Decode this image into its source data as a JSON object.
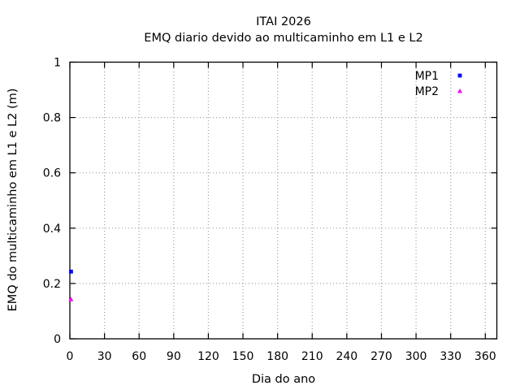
{
  "chart_data": {
    "type": "scatter",
    "title": "ITAI 2026",
    "subtitle": "EMQ diario devido ao multicaminho em L1 e L2",
    "xlabel": "Dia do ano",
    "ylabel": "EMQ do multicaminho em L1 e L2 (m)",
    "xlim": [
      0,
      370
    ],
    "ylim": [
      0,
      1
    ],
    "xticks": [
      0,
      30,
      60,
      90,
      120,
      150,
      180,
      210,
      240,
      270,
      300,
      330,
      360
    ],
    "xtick_labels": [
      "0",
      "30",
      "60",
      "90",
      "120",
      "150",
      "180",
      "210",
      "240",
      "270",
      "300",
      "330",
      "360"
    ],
    "yticks": [
      0,
      0.2,
      0.4,
      0.6,
      0.8,
      1
    ],
    "ytick_labels": [
      "0",
      "0.2",
      "0.4",
      "0.6",
      "0.8",
      "1"
    ],
    "grid": true,
    "grid_style": "dotted",
    "legend_position": "top-right-inside",
    "background_color": "#ffffff",
    "axis_color": "#000000",
    "grid_color": "#9e9e9e",
    "text_color": "#000000",
    "series": [
      {
        "name": "MP1",
        "color": "#0000ff",
        "marker": "square",
        "points": [
          {
            "x": 1,
            "y": 0.243
          }
        ]
      },
      {
        "name": "MP2",
        "color": "#ff00ff",
        "marker": "triangle",
        "points": [
          {
            "x": 1,
            "y": 0.143
          }
        ]
      }
    ]
  }
}
